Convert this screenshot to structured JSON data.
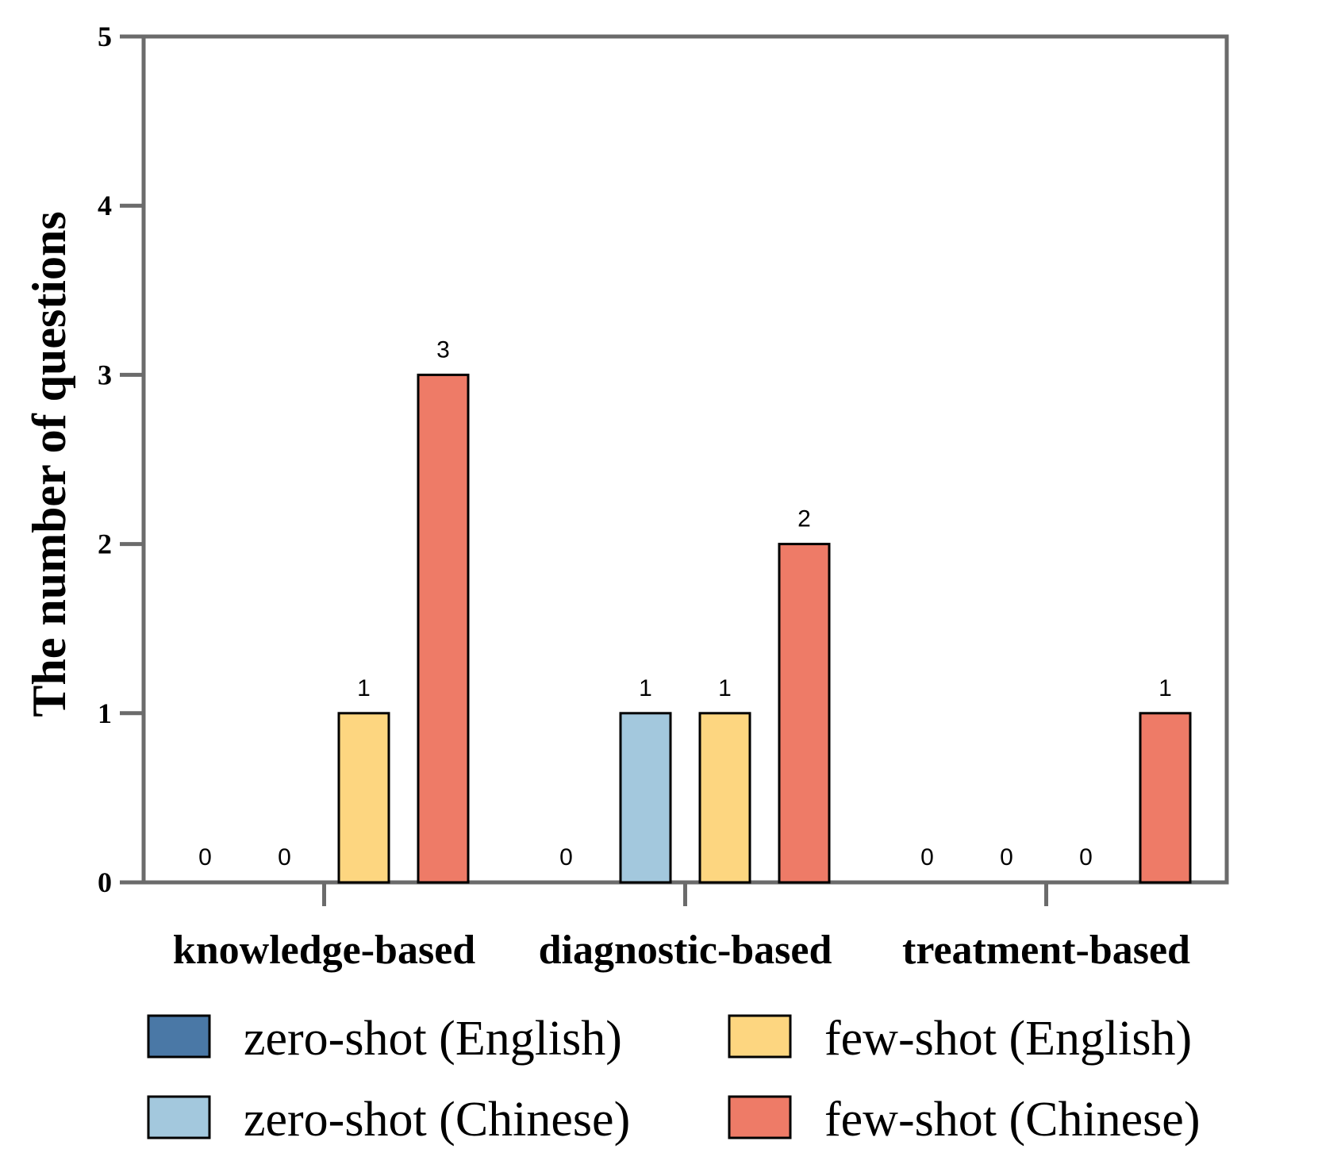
{
  "chart_data": {
    "type": "bar",
    "title": "",
    "xlabel": "",
    "ylabel": "The number of questions",
    "ylim": [
      0,
      5
    ],
    "yticks": [
      "0",
      "1",
      "2",
      "3",
      "4",
      "5"
    ],
    "grid": false,
    "legend_position": "bottom",
    "categories": [
      "knowledge-based",
      "diagnostic-based",
      "treatment-based"
    ],
    "series": [
      {
        "name": "zero-shot (English)",
        "color": "#4a78a6",
        "values": [
          0,
          0,
          0
        ]
      },
      {
        "name": "zero-shot (Chinese)",
        "color": "#a3c8dd",
        "values": [
          0,
          1,
          0
        ]
      },
      {
        "name": "few-shot (English)",
        "color": "#fdd680",
        "values": [
          1,
          1,
          0
        ]
      },
      {
        "name": "few-shot (Chinese)",
        "color": "#ee7b67",
        "values": [
          3,
          2,
          1
        ]
      }
    ],
    "data_labels": [
      [
        "0",
        "0",
        "1",
        "3"
      ],
      [
        "0",
        "1",
        "1",
        "2"
      ],
      [
        "0",
        "0",
        "0",
        "1"
      ]
    ]
  }
}
